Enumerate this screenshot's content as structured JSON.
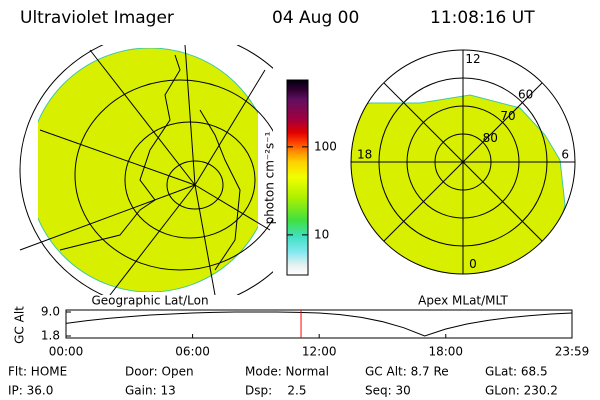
{
  "header": {
    "title": "Ultraviolet Imager",
    "date": "04 Aug 00",
    "time": "11:08:16 UT"
  },
  "geo_map": {
    "title": "Geographic Lat/Lon"
  },
  "colorbar": {
    "label": "photon cm⁻²s⁻¹",
    "lim": [
      3.5,
      575
    ],
    "ticks": [
      10,
      100
    ],
    "log": true
  },
  "polar_map": {
    "title": "Apex MLat/MLT",
    "mlt_labels": [
      12,
      18,
      6,
      0
    ],
    "lat_labels": [
      60,
      70,
      80
    ]
  },
  "chart_data": {
    "type": "line",
    "y_label": "GC Alt",
    "color": "#000000",
    "x": [
      0,
      1,
      2,
      3,
      4,
      5,
      6,
      7,
      8,
      9,
      10,
      11,
      12,
      13,
      14,
      15,
      16,
      17,
      18,
      19,
      20,
      21,
      22,
      23,
      23.983
    ],
    "values": [
      5.6,
      6.4,
      7.1,
      7.6,
      8.1,
      8.4,
      8.7,
      8.9,
      9.0,
      9.0,
      9.0,
      8.9,
      8.7,
      8.2,
      7.4,
      6.1,
      4.3,
      1.8,
      3.9,
      5.4,
      6.5,
      7.3,
      7.9,
      8.4,
      8.7
    ],
    "xlim": [
      0,
      23.983
    ],
    "ylim": [
      1.2,
      9.6
    ],
    "xticks": [
      {
        "value": 0,
        "label": "00:00"
      },
      {
        "value": 6,
        "label": "06:00"
      },
      {
        "value": 12,
        "label": "12:00"
      },
      {
        "value": 18,
        "label": "18:00"
      },
      {
        "value": 23.983,
        "label": "23:59"
      }
    ],
    "yticks": [
      {
        "value": 9,
        "label": "9.0"
      },
      1.8
    ],
    "marker_x": 11.14,
    "marker_color": "#ff0000"
  },
  "info": {
    "rows": [
      [
        "Flt: HOME",
        "Door: Open",
        "Mode: Normal",
        "GC Alt: 8.7 Re",
        "GLat: 68.5"
      ],
      [
        "IP: 36.0",
        "Gain: 13",
        "Dsp:    2.5",
        "Seq: 30",
        "GLon: 230.2"
      ]
    ]
  }
}
